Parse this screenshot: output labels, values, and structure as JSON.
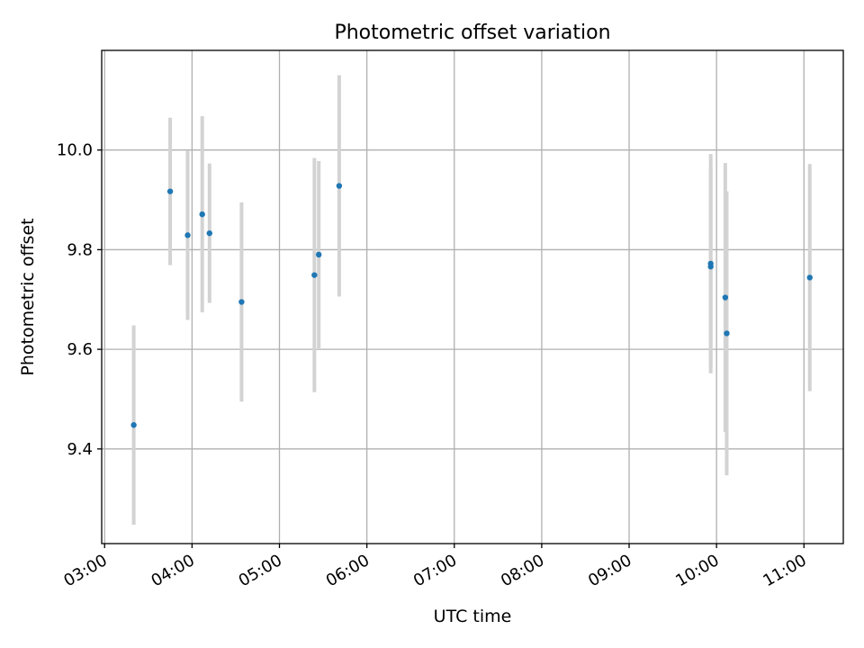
{
  "chart_data": {
    "type": "scatter",
    "title": "Photometric offset variation",
    "xlabel": "UTC time",
    "ylabel": "Photometric offset",
    "x_axis_type": "time",
    "xlim": [
      "02:58",
      "11:27"
    ],
    "ylim": [
      9.21,
      10.2
    ],
    "x_ticks": [
      "03:00",
      "04:00",
      "05:00",
      "06:00",
      "07:00",
      "08:00",
      "09:00",
      "10:00",
      "11:00"
    ],
    "y_ticks": [
      "9.4",
      "9.6",
      "9.8",
      "10.0"
    ],
    "grid": true,
    "marker_color": "#1f77b4",
    "errorbar_color": "#d3d3d3",
    "series": [
      {
        "points": [
          {
            "x": "03:20",
            "y": 9.448,
            "err": 0.2
          },
          {
            "x": "03:45",
            "y": 9.917,
            "err": 0.148
          },
          {
            "x": "03:57",
            "y": 9.829,
            "err": 0.17
          },
          {
            "x": "04:07",
            "y": 9.871,
            "err": 0.197
          },
          {
            "x": "04:12",
            "y": 9.833,
            "err": 0.14
          },
          {
            "x": "04:34",
            "y": 9.695,
            "err": 0.2
          },
          {
            "x": "05:24",
            "y": 9.749,
            "err": 0.235
          },
          {
            "x": "05:27",
            "y": 9.79,
            "err": 0.188
          },
          {
            "x": "05:41",
            "y": 9.928,
            "err": 0.222
          },
          {
            "x": "09:56",
            "y": 9.772,
            "err": 0.22
          },
          {
            "x": "09:56",
            "y": 9.766,
            "err": 0.2
          },
          {
            "x": "10:06",
            "y": 9.704,
            "err": 0.27
          },
          {
            "x": "10:07",
            "y": 9.632,
            "err": 0.285
          },
          {
            "x": "11:04",
            "y": 9.744,
            "err": 0.228
          }
        ]
      }
    ]
  }
}
